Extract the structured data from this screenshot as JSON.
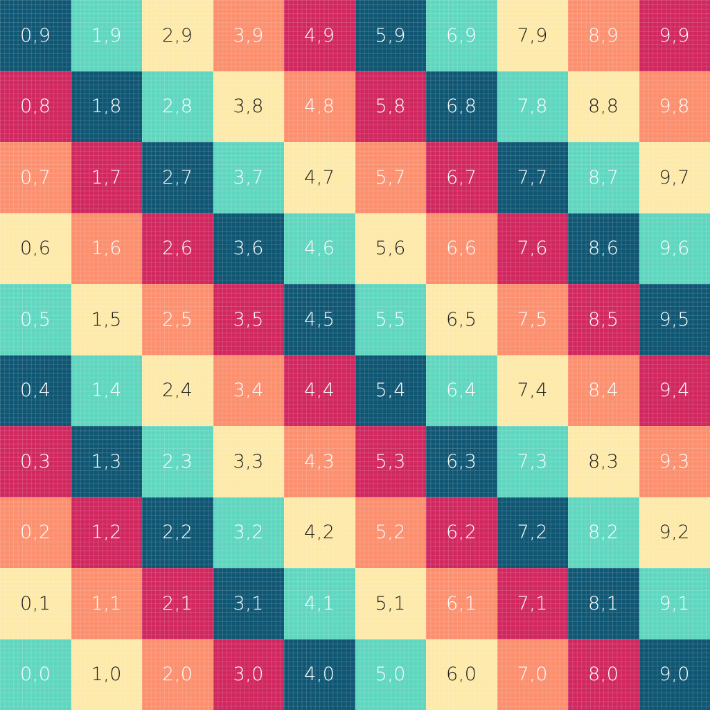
{
  "palette": [
    "#0f5673",
    "#5fd6bf",
    "#fde9a9",
    "#fb8f6e",
    "#d1275f"
  ],
  "text_colors": {
    "#0f5673": "#ffffff",
    "#5fd6bf": "#ffffff",
    "#fde9a9": "#1e1e1e",
    "#fb8f6e": "#ffffff",
    "#d1275f": "#ffffff"
  },
  "rows": [
    {
      "cells": [
        {
          "label": "0,9"
        },
        {
          "label": "1,9"
        },
        {
          "label": "2,9"
        },
        {
          "label": "3,9"
        },
        {
          "label": "4,9"
        },
        {
          "label": "5,9"
        },
        {
          "label": "6,9"
        },
        {
          "label": "7,9"
        },
        {
          "label": "8,9"
        },
        {
          "label": "9,9"
        }
      ]
    },
    {
      "cells": [
        {
          "label": "0,8"
        },
        {
          "label": "1,8"
        },
        {
          "label": "2,8"
        },
        {
          "label": "3,8"
        },
        {
          "label": "4,8"
        },
        {
          "label": "5,8"
        },
        {
          "label": "6,8"
        },
        {
          "label": "7,8"
        },
        {
          "label": "8,8"
        },
        {
          "label": "9,8"
        }
      ]
    },
    {
      "cells": [
        {
          "label": "0,7"
        },
        {
          "label": "1,7"
        },
        {
          "label": "2,7"
        },
        {
          "label": "3,7"
        },
        {
          "label": "4,7"
        },
        {
          "label": "5,7"
        },
        {
          "label": "6,7"
        },
        {
          "label": "7,7"
        },
        {
          "label": "8,7"
        },
        {
          "label": "9,7"
        }
      ]
    },
    {
      "cells": [
        {
          "label": "0,6"
        },
        {
          "label": "1,6"
        },
        {
          "label": "2,6"
        },
        {
          "label": "3,6"
        },
        {
          "label": "4,6"
        },
        {
          "label": "5,6"
        },
        {
          "label": "6,6"
        },
        {
          "label": "7,6"
        },
        {
          "label": "8,6"
        },
        {
          "label": "9,6"
        }
      ]
    },
    {
      "cells": [
        {
          "label": "0,5"
        },
        {
          "label": "1,5"
        },
        {
          "label": "2,5"
        },
        {
          "label": "3,5"
        },
        {
          "label": "4,5"
        },
        {
          "label": "5,5"
        },
        {
          "label": "6,5"
        },
        {
          "label": "7,5"
        },
        {
          "label": "8,5"
        },
        {
          "label": "9,5"
        }
      ]
    },
    {
      "cells": [
        {
          "label": "0,4"
        },
        {
          "label": "1,4"
        },
        {
          "label": "2,4"
        },
        {
          "label": "3,4"
        },
        {
          "label": "4,4"
        },
        {
          "label": "5,4"
        },
        {
          "label": "6,4"
        },
        {
          "label": "7,4"
        },
        {
          "label": "8,4"
        },
        {
          "label": "9,4"
        }
      ]
    },
    {
      "cells": [
        {
          "label": "0,3"
        },
        {
          "label": "1,3"
        },
        {
          "label": "2,3"
        },
        {
          "label": "3,3"
        },
        {
          "label": "4,3"
        },
        {
          "label": "5,3"
        },
        {
          "label": "6,3"
        },
        {
          "label": "7,3"
        },
        {
          "label": "8,3"
        },
        {
          "label": "9,3"
        }
      ]
    },
    {
      "cells": [
        {
          "label": "0,2"
        },
        {
          "label": "1,2"
        },
        {
          "label": "2,2"
        },
        {
          "label": "3,2"
        },
        {
          "label": "4,2"
        },
        {
          "label": "5,2"
        },
        {
          "label": "6,2"
        },
        {
          "label": "7,2"
        },
        {
          "label": "8,2"
        },
        {
          "label": "9,2"
        }
      ]
    },
    {
      "cells": [
        {
          "label": "0,1"
        },
        {
          "label": "1,1"
        },
        {
          "label": "2,1"
        },
        {
          "label": "3,1"
        },
        {
          "label": "4,1"
        },
        {
          "label": "5,1"
        },
        {
          "label": "6,1"
        },
        {
          "label": "7,1"
        },
        {
          "label": "8,1"
        },
        {
          "label": "9,1"
        }
      ]
    },
    {
      "cells": [
        {
          "label": "0,0"
        },
        {
          "label": "1,0"
        },
        {
          "label": "2,0"
        },
        {
          "label": "3,0"
        },
        {
          "label": "4,0"
        },
        {
          "label": "5,0"
        },
        {
          "label": "6,0"
        },
        {
          "label": "7,0"
        },
        {
          "label": "8,0"
        },
        {
          "label": "9,0"
        }
      ]
    }
  ]
}
